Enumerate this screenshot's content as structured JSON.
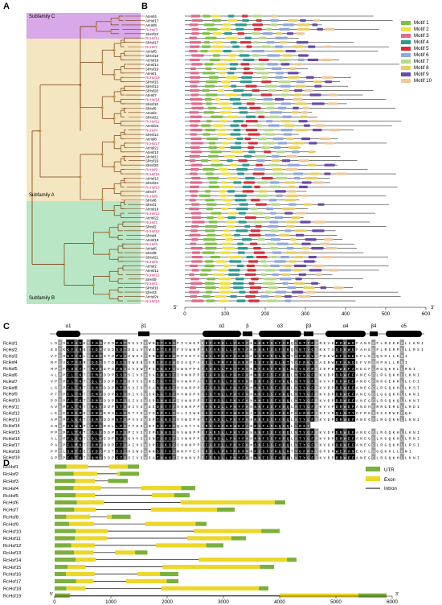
{
  "panels": {
    "A": "A",
    "B": "B",
    "C": "C",
    "D": "D"
  },
  "panelA": {
    "subfamily_c": "Subfamily C",
    "subfamily_a": "Subfamily A",
    "subfamily_b": "Subfamily B",
    "colors": {
      "c": "#d9a8e8",
      "a": "#f3e6c0",
      "b": "#b9e6c4"
    }
  },
  "genes_b": [
    "AtHsf4",
    "AtHsf17",
    "AtHsf9",
    "RcHsf3",
    "SlHsf23",
    "RcHsf11",
    "SlHsf17",
    "RcHsf7",
    "AtHsf5",
    "SlHsf18",
    "AtHsf16",
    "AtHsf14",
    "SlHsf19",
    "AtHsf1",
    "RcHsf19",
    "SlHsf15",
    "SlHsf13",
    "SlHsf20",
    "AtHsf7",
    "RcHsf14",
    "SlHsf10",
    "SlHsf5",
    "AtHsf2",
    "SlHsf22",
    "RcHsf11",
    "AtHsf23",
    "RcHsf4",
    "SlHsf14",
    "AtHsf8",
    "RcHsf17",
    "AtHsf21",
    "AtHsf10",
    "AtHsf11",
    "SlHsf19",
    "SlHsf20",
    "RcHsf9",
    "RcHsf15",
    "AtHsf13",
    "SlHsf24",
    "RcHsf10",
    "SlHsf7",
    "RcHsf6",
    "SlHsf6",
    "SlHsf1",
    "AtHsf16",
    "RcHsf13",
    "AtHsf22",
    "RcHsf1",
    "SlHsf2",
    "RcHsf12",
    "SlHsf4",
    "AtHsf18",
    "RcHsf5",
    "AtHsf6",
    "SlHsf8",
    "SlHsf21",
    "RcHsf8",
    "AtHsf2",
    "AtHsf12",
    "RcHsf16",
    "SlHsf9",
    "RcHsf2",
    "SlHsf16",
    "SlHsf3",
    "AtHsf24",
    "RcHsf18"
  ],
  "motifs": [
    {
      "name": "Motif 1",
      "color": "#7cc243"
    },
    {
      "name": "Motif 2",
      "color": "#f2e13c"
    },
    {
      "name": "Motif 3",
      "color": "#e06a8c"
    },
    {
      "name": "Motif 4",
      "color": "#2b9a8f"
    },
    {
      "name": "Motif 5",
      "color": "#d82e3a"
    },
    {
      "name": "Motif 6",
      "color": "#8fa8e0"
    },
    {
      "name": "Motif 7",
      "color": "#b6db8a"
    },
    {
      "name": "Motif 8",
      "color": "#e8d060"
    },
    {
      "name": "Motif 9",
      "color": "#6a4aa6"
    },
    {
      "name": "Motif 10",
      "color": "#f0c89a"
    }
  ],
  "motif_axis": {
    "ticks": [
      "0",
      "100",
      "200",
      "300",
      "400",
      "500",
      "600"
    ],
    "values": [
      0,
      100,
      200,
      300,
      400,
      500,
      600
    ],
    "max": 600,
    "s5": "5'",
    "s3": "3'"
  },
  "panelC": {
    "structure": [
      "α1",
      "β1",
      "α2",
      "β",
      "α3",
      "β3",
      "α4",
      "β4",
      "α5"
    ],
    "rows": [
      "RcHsf1",
      "RcHsf2",
      "RcHsf3",
      "RcHsf4",
      "RcHsf5",
      "RcHsf6",
      "RcHsf7",
      "RcHsf8",
      "RcHsf9",
      "RcHsf10",
      "RcHsf11",
      "RcHsf12",
      "RcHsf13",
      "RcHsf14",
      "RcHsf15",
      "RcHsf16",
      "RcHsf17",
      "RcHsf18",
      "RcHsf19"
    ],
    "seq": [
      "LDPSEFVVKTYHMVDDPSTDGVISWNQTGNSFIVWDPMEFARDLLPKYFKHNNFSSFVRQLNTYGFRKVDPDRWEFANEGFLRGKKHLLKNI",
      "ESYKKFVRKTYDMVDDSDTDELVSWSPTGRSFVVWNPPEFAKDLLPRYFKHNNFSSFVRQLNTYGFRKTSSDRWEFAHEEFLRGRPELLRSI",
      "VFLSKTYDLVDDPSTDPVVSWSATNNSFVVWDPHKFATDLLPKHFKHNNFSSFVRQLNTYGFRKVDPDKWEFANEGFLKGQKHLLKNI",
      "MFLVKTYEMVDDSSTDSIVSWSNSGRSFVVWDSAQFARELLPRYFKHNNFSSFVRQLNTYGFRKVNAERWEFANDEFVRGHPHLLRNI",
      "MPPFLSKTYEMVEDPSTNSIVSWSPSGKSFVVWNPPEFAHDLLPKYFKHNNFSSFVRQLNTYGFRKIDPDRWEFANEGFLRGQKHLLRNI",
      "ALPPFLTKTYEMVDDPSSDSIVSWSASNNSFIVWNPPEFARDLLPRHFKHNNFSSFVRQLNTYGFRKVDPDRWEFANEGFLRGQKHLLKNI",
      "VPAPFLTKTYQLVDDPSTDDVVSWNEDGTTFVVWRPAEFARDLLPKYFKHSNFSSFVRQLNTYGFRKVVPDRWEFANDCFRRGEKRLLCDI",
      "LGPPFLTKTYDMVDDPATDSVISWSANNNSFVVWRPPEFARDLLPKYFKHNNFSSFVRQLNTYGFRKVDPDRWEFANEGFLRGQKHLLKSI",
      "PTAPFLTKTFEMVDDPSTDHIVSWSRGGTSFVVWDPHAFSTNLLPRYFKHNNFSSFVRQLNTYGFRKVDPDRWEFANEGFLGGQKHLLKNI",
      "PPPPFLTKTYDMVDDPSTDSIVSWSPSNNSFIVWNPPEFARDLLPKYFKHNNFSSFVRQLNTYGFRKVDPDRWEFANEGFLRGQKQLLKNI",
      "AVAPFLTKTYRLVDDPSTDHIVSWGEDDTTFVVWRPPEFARDLLPNYFKHNNFSSFVRQLNTYGFRKVVPDRWEFANDHFRRGERGLLRDI",
      "LEEEEEKMDGGNWKRSLLEKTYEMVDDPSLDVLISWDSSGTSFVVWDPHAFARDLLPKHFKHNNFSSFVRQLNTYGFRKISSSRWEFQH",
      "APPPFLKKTYEMVDDPATDPVVSWSPTGNSFVVWDPHAFAKDLLPKYFKHNNFSSFVRQLNTYGFRKVDPDRWEFANEGFLRGQKHLLKNI",
      "GNSFVVWNPSEFARDLLPKYFKHNNFSSFVRQLNTYGFRKVDPDRWEFANEGFLRGQKQLLRSI",
      "PPPPFLTKTFDLVDDPSTDPIVSWSPSNNSFVVWNPPEFARDLLPKYFKHNNFSSFVRQLNTYGFRKVDPDRWEFANEGFLRGQKHLLKNI",
      "ALPPFLSKTYDLVEDPSTDGVVSWSNTGDSFIVWNPPEFARDLLPKYFKHNNFSSFVRQLNTYGFRKVDPDRWEFANEGFLKGQKHLLRNI",
      "PAPPFLMKTYDMVDDPTTDAIVSWSPTGKSFIVWNPPEFARDLLPKYFKHSNFSSFVRQLNTYGFRKVDPDRWEFANEGFLRGQKHLLRSI",
      "PPFLSKTYEMVDDPSTDSIVSWSANNSSFVVWNPPEFARDLLPKYFKHNNFSSFVRQLNTYGFRKVDPDRWEFANEGFLRGQKHLLKNI",
      "GPAPFLTKTYQMVDDPSTDSIVSWSATNNSFIVWNVPEFSRDLLPKYFKHNNFSSFVRQLNTYGFRKVDPDRWEFANEGFLRGQKHLLKNI"
    ]
  },
  "panelD": {
    "legend": [
      "UTR",
      "Exon",
      "Intron"
    ],
    "colors": {
      "utr": "#7bb03c",
      "exon": "#ecd72a",
      "intron": "#000000"
    },
    "genes": [
      "RcHsf1",
      "RcHsf2",
      "RcHsf3",
      "RcHsf4",
      "RcHsf5",
      "RcHsf6",
      "RcHsf7",
      "RcHsf8",
      "RcHsf9",
      "RcHsf10",
      "RcHsf11",
      "RcHsf12",
      "RcHsf13",
      "RcHsf14",
      "RcHsf15",
      "RcHsf16",
      "RcHsf17",
      "RcHsf18",
      "RcHsf19"
    ],
    "axis": {
      "ticks": [
        "0",
        "1000",
        "2000",
        "3000",
        "4000",
        "5000",
        "6000"
      ],
      "values": [
        0,
        1000,
        2000,
        3000,
        4000,
        5000,
        6000
      ],
      "max": 6000,
      "s5": "5'",
      "s3": "3'"
    }
  }
}
